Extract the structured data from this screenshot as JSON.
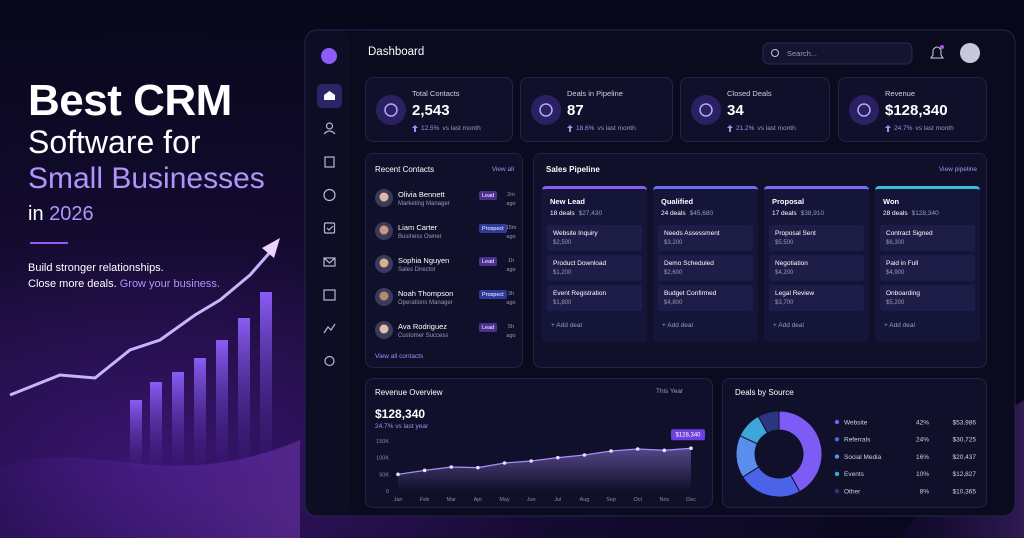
{
  "hero": {
    "line1": "Best CRM",
    "line2": "Software for",
    "line3": "Small Businesses",
    "line4": "in",
    "year": "2026",
    "tagline1": "Build stronger relationships.",
    "tagline2": "Close more deals.",
    "tagline3": "Grow your business."
  },
  "header": {
    "title": "Dashboard",
    "search_placeholder": "Search..."
  },
  "stats": [
    {
      "label": "Total Contacts",
      "value": "2,543",
      "change": "12.5%",
      "note": "vs last month"
    },
    {
      "label": "Deals in Pipeline",
      "value": "87",
      "change": "18.6%",
      "note": "vs last month"
    },
    {
      "label": "Closed Deals",
      "value": "34",
      "change": "21.2%",
      "note": "vs last month"
    },
    {
      "label": "Revenue",
      "value": "$128,340",
      "change": "24.7%",
      "note": "vs last month"
    }
  ],
  "recent_contacts": {
    "title": "Recent Contacts",
    "link": "View all",
    "footer": "View all contacts",
    "items": [
      {
        "name": "Olivia Bennett",
        "role": "Marketing Manager",
        "tag": "Lead",
        "tag_color": "#4c2f8f",
        "time": "2m ago"
      },
      {
        "name": "Liam Carter",
        "role": "Business Owner",
        "tag": "Prospect",
        "tag_color": "#2d3a9c",
        "time": "15m ago"
      },
      {
        "name": "Sophia Nguyen",
        "role": "Sales Director",
        "tag": "Lead",
        "tag_color": "#4c2f8f",
        "time": "1h ago"
      },
      {
        "name": "Noah Thompson",
        "role": "Operations Manager",
        "tag": "Prospect",
        "tag_color": "#2d3a9c",
        "time": "3h ago"
      },
      {
        "name": "Ava Rodriguez",
        "role": "Customer Success",
        "tag": "Lead",
        "tag_color": "#4c2f8f",
        "time": "5h ago"
      }
    ]
  },
  "pipeline": {
    "title": "Sales Pipeline",
    "link": "View pipeline",
    "add_label": "+ Add deal",
    "columns": [
      {
        "name": "New Lead",
        "color": "#8b5cf6",
        "count": "18 deals",
        "total": "$27,430",
        "deals": [
          {
            "name": "Website Inquiry",
            "amount": "$2,500"
          },
          {
            "name": "Product Download",
            "amount": "$1,200"
          },
          {
            "name": "Event Registration",
            "amount": "$1,800"
          }
        ]
      },
      {
        "name": "Qualified",
        "color": "#6b6ff0",
        "count": "24 deals",
        "total": "$45,680",
        "deals": [
          {
            "name": "Needs Assessment",
            "amount": "$3,200"
          },
          {
            "name": "Demo Scheduled",
            "amount": "$2,600"
          },
          {
            "name": "Budget Confirmed",
            "amount": "$4,800"
          }
        ]
      },
      {
        "name": "Proposal",
        "color": "#7b6cf6",
        "count": "17 deals",
        "total": "$38,910",
        "deals": [
          {
            "name": "Proposal Sent",
            "amount": "$5,500"
          },
          {
            "name": "Negotiation",
            "amount": "$4,200"
          },
          {
            "name": "Legal Review",
            "amount": "$3,700"
          }
        ]
      },
      {
        "name": "Won",
        "color": "#38bdd8",
        "count": "28 deals",
        "total": "$128,340",
        "deals": [
          {
            "name": "Contract Signed",
            "amount": "$6,300"
          },
          {
            "name": "Paid in Full",
            "amount": "$4,900"
          },
          {
            "name": "Onboarding",
            "amount": "$5,200"
          }
        ]
      }
    ]
  },
  "revenue_overview": {
    "title": "Revenue Overview",
    "period": "This Year",
    "total": "$128,340",
    "change": "24.7% vs last year",
    "chart": {
      "type": "line",
      "color": "#a78bfa",
      "categories": [
        "Jan",
        "Feb",
        "Mar",
        "Apr",
        "May",
        "Jun",
        "Jul",
        "Aug",
        "Sep",
        "Oct",
        "Nov",
        "Dec"
      ],
      "values": [
        50000,
        62000,
        72000,
        70000,
        84000,
        90000,
        100000,
        108000,
        120000,
        126000,
        122000,
        128340
      ],
      "value_labels": [
        null,
        null,
        null,
        null,
        null,
        null,
        null,
        null,
        null,
        null,
        null,
        "$128,340"
      ],
      "ylim": [
        0,
        150000
      ],
      "yticks": [
        0,
        {
          "value": 50000,
          "label": "50K"
        },
        {
          "value": 100000,
          "label": "100K"
        },
        {
          "value": 150000,
          "label": "150K"
        }
      ]
    }
  },
  "deals_by_source": {
    "title": "Deals by Source",
    "chart": {
      "type": "pie",
      "categories": [
        "Website",
        "Referrals",
        "Social Media",
        "Events",
        "Other"
      ],
      "values": [
        42,
        24,
        16,
        10,
        8
      ],
      "value_labels": [
        "42%",
        "24%",
        "16%",
        "10%",
        "8%"
      ],
      "colors": [
        "#7c5cf5",
        "#4a63e8",
        "#5b8def",
        "#3ea6da",
        "#2b3680"
      ]
    },
    "amounts": [
      "$53,986",
      "$30,725",
      "$20,437",
      "$12,827",
      "$10,365"
    ]
  }
}
